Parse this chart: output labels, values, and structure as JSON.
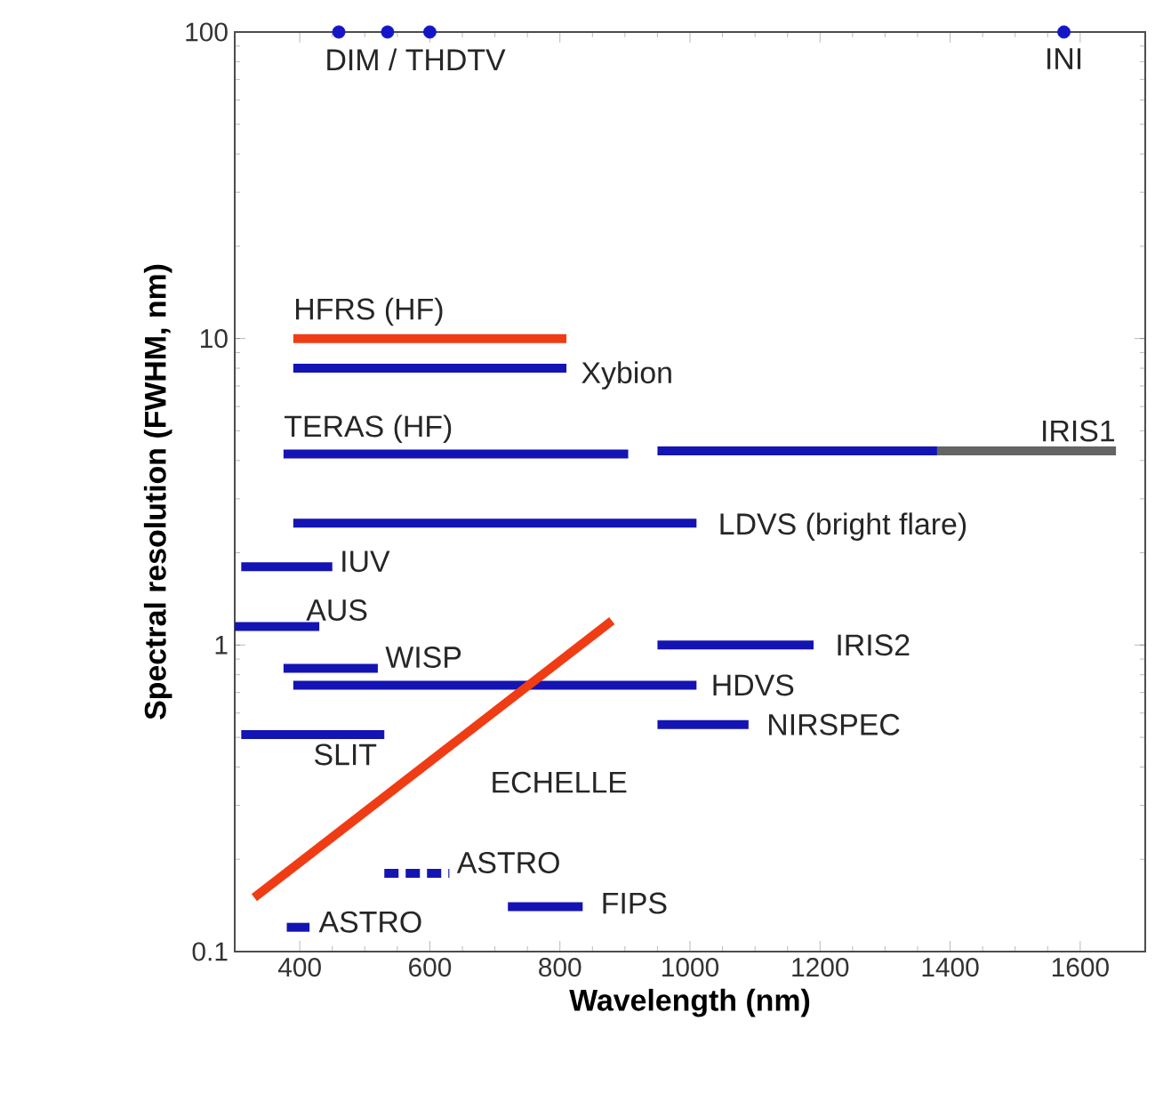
{
  "chart_data": {
    "type": "line",
    "xlabel": "Wavelength (nm)",
    "ylabel": "Spectral resolution (FWHM, nm)",
    "log": "y",
    "xlim": [
      300,
      1700
    ],
    "ylim": [
      0.1,
      100
    ],
    "xticks": [
      400,
      600,
      800,
      1000,
      1200,
      1400,
      1600
    ],
    "yticks": [
      0.1,
      1,
      10,
      100
    ],
    "series": [
      {
        "name": "DIM / THDTV",
        "type": "scatter",
        "marker": "circle",
        "color": "#1414c8",
        "x": [
          460,
          535,
          600
        ],
        "values": [
          100,
          100,
          100
        ]
      },
      {
        "name": "INI",
        "type": "scatter",
        "marker": "circle",
        "color": "#1414c8",
        "x": [
          1575
        ],
        "values": [
          100
        ]
      },
      {
        "name": "HFRS (HF)",
        "color": "#f03c14",
        "x": [
          390,
          810
        ],
        "values": [
          10,
          10
        ]
      },
      {
        "name": "Xybion",
        "color": "#1414b4",
        "x": [
          390,
          810
        ],
        "values": [
          8,
          8
        ]
      },
      {
        "name": "TERAS (HF)",
        "color": "#1414b4",
        "x": [
          375,
          905
        ],
        "values": [
          4.2,
          4.2
        ]
      },
      {
        "color": "#1414b4",
        "x": [
          950,
          1380
        ],
        "values": [
          4.3,
          4.3
        ]
      },
      {
        "name": "IRIS1",
        "color": "#646464",
        "x": [
          1380,
          1655
        ],
        "values": [
          4.3,
          4.3
        ]
      },
      {
        "name": "LDVS (bright flare)",
        "color": "#1414b4",
        "x": [
          390,
          1010
        ],
        "values": [
          2.5,
          2.5
        ]
      },
      {
        "name": "IUV",
        "color": "#1414b4",
        "x": [
          310,
          450
        ],
        "values": [
          1.8,
          1.8
        ]
      },
      {
        "name": "AUS",
        "color": "#1414b4",
        "x": [
          300,
          430
        ],
        "values": [
          1.15,
          1.15
        ]
      },
      {
        "name": "IRIS2",
        "color": "#1414b4",
        "x": [
          950,
          1190
        ],
        "values": [
          1.0,
          1.0
        ]
      },
      {
        "name": "WISP",
        "color": "#1414b4",
        "x": [
          375,
          520
        ],
        "values": [
          0.84,
          0.84
        ]
      },
      {
        "name": "HDVS",
        "color": "#1414b4",
        "x": [
          390,
          1010
        ],
        "values": [
          0.74,
          0.74
        ]
      },
      {
        "name": "NIRSPEC",
        "color": "#1414b4",
        "x": [
          950,
          1090
        ],
        "values": [
          0.55,
          0.55
        ]
      },
      {
        "name": "SLIT",
        "color": "#1414b4",
        "x": [
          310,
          530
        ],
        "values": [
          0.51,
          0.51
        ]
      },
      {
        "name": "ECHELLE",
        "color": "#f03c14",
        "x": [
          330,
          880
        ],
        "values": [
          0.15,
          1.2
        ]
      },
      {
        "name": "ASTRO",
        "color": "#1414b4",
        "line_style": "dashed",
        "x": [
          530,
          630
        ],
        "values": [
          0.18,
          0.18
        ]
      },
      {
        "name": "FIPS",
        "color": "#1414b4",
        "x": [
          720,
          835
        ],
        "values": [
          0.14,
          0.14
        ]
      },
      {
        "name": "ASTRO",
        "color": "#1414b4",
        "x": [
          380,
          415
        ],
        "values": [
          0.12,
          0.12
        ]
      }
    ]
  }
}
